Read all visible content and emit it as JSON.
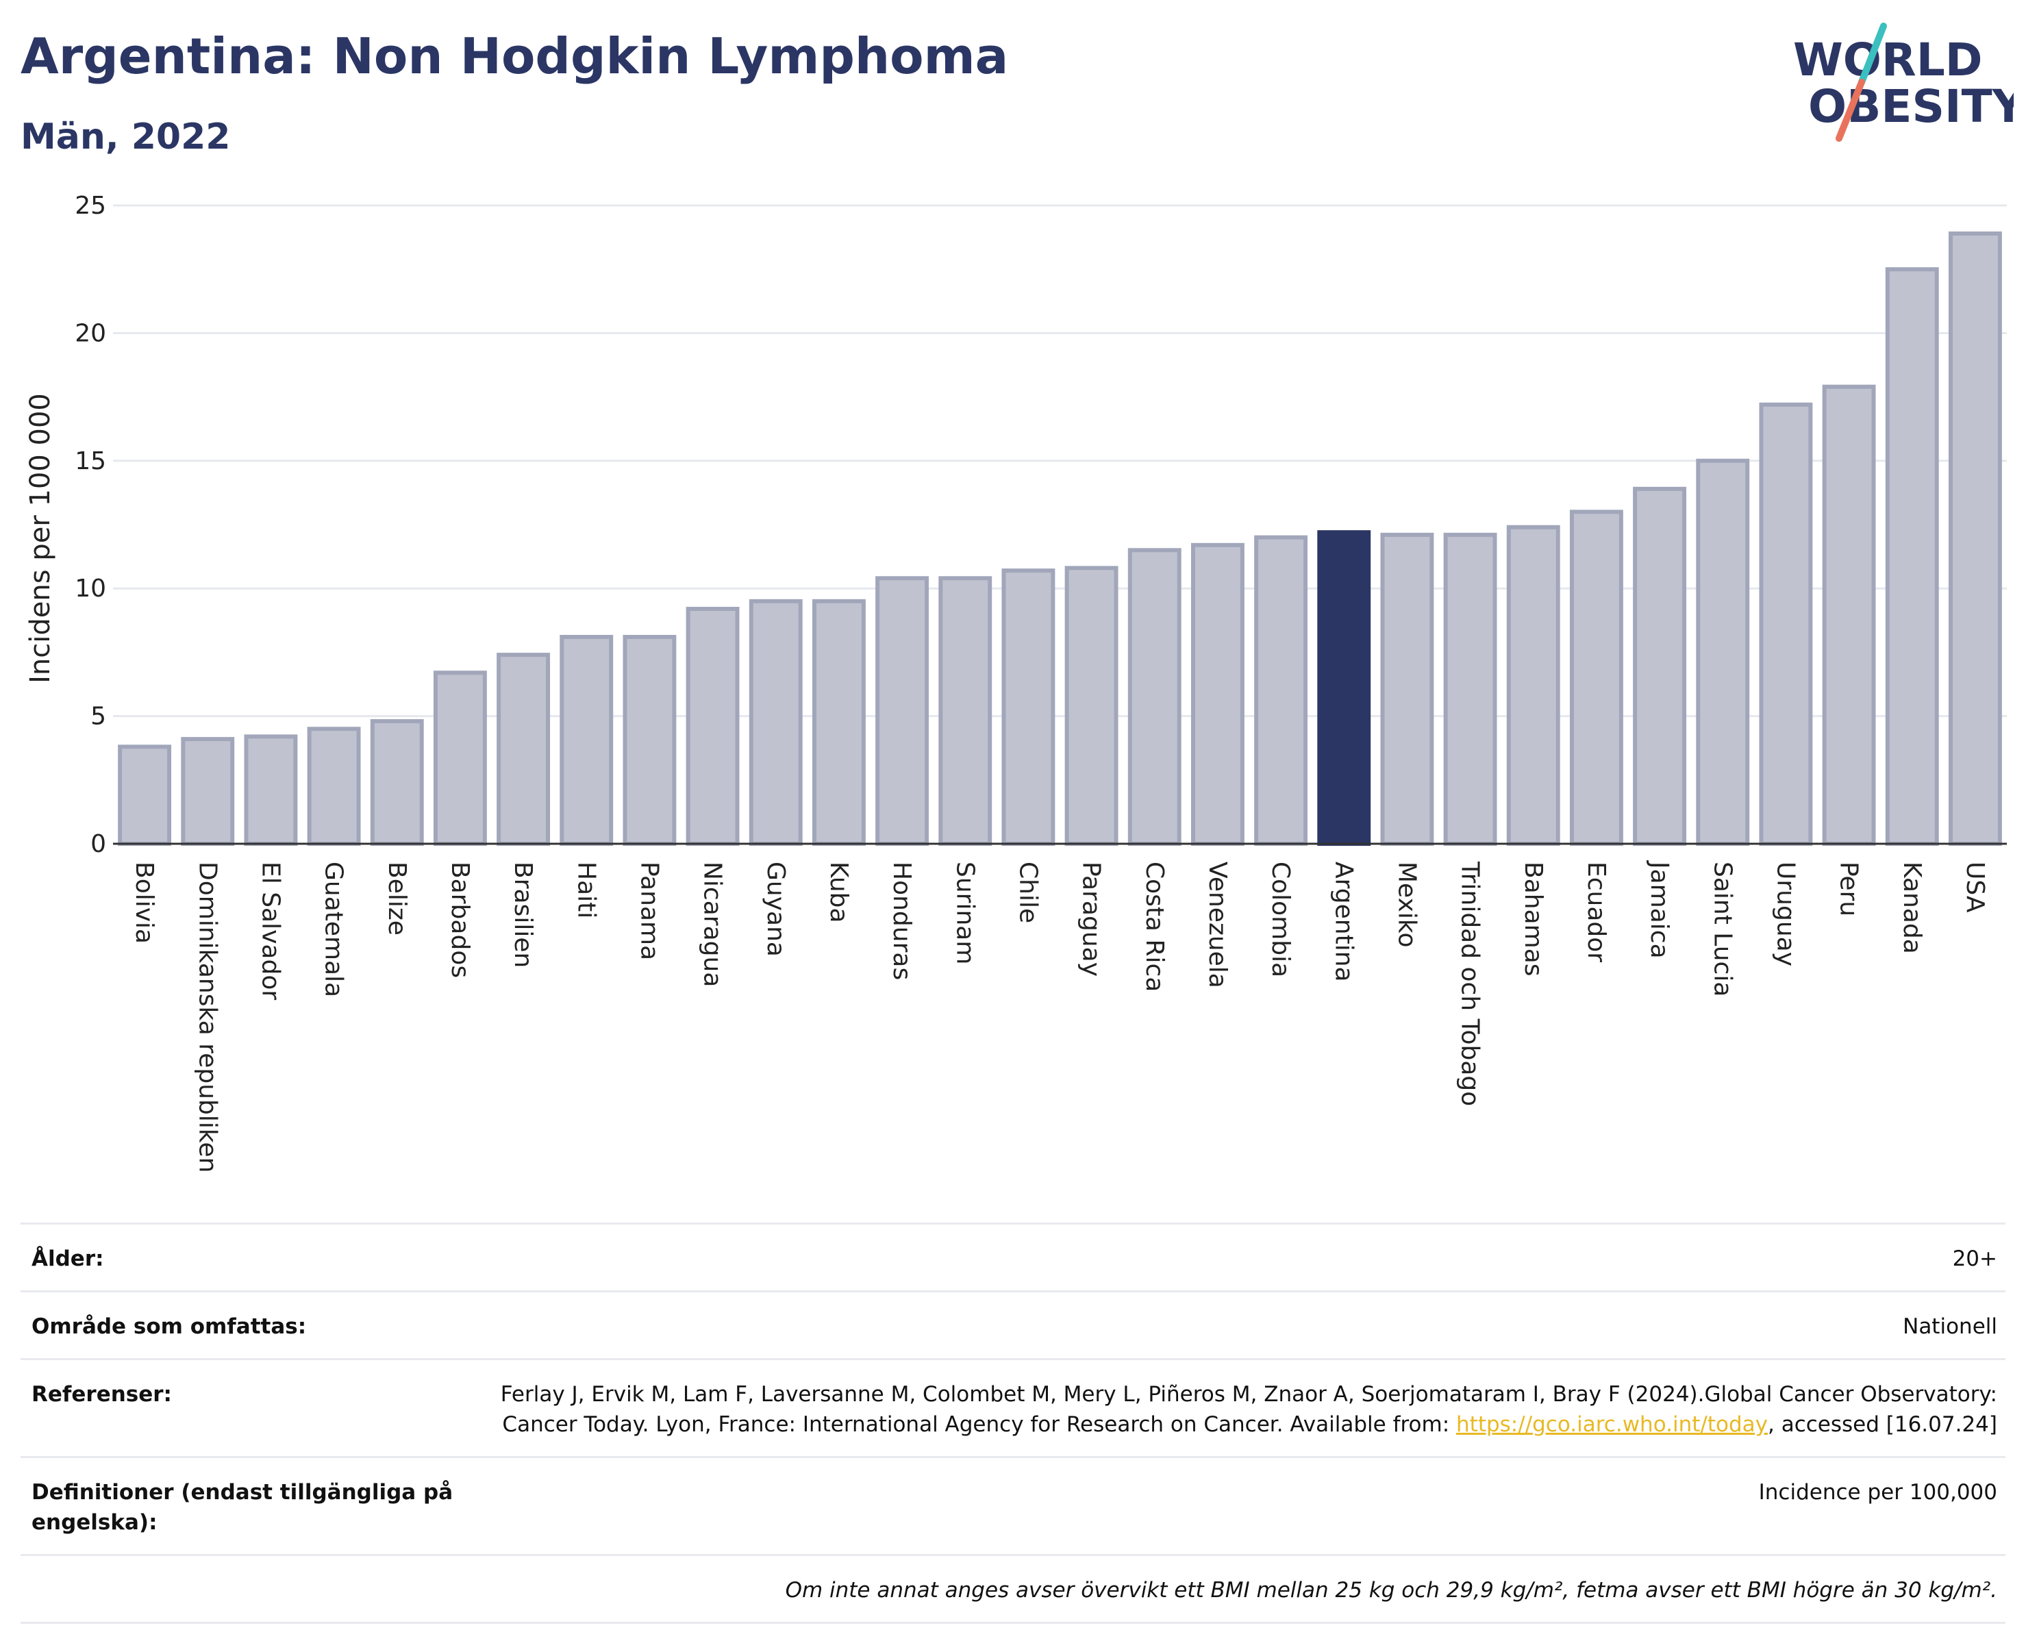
{
  "header": {
    "title": "Argentina: Non Hodgkin Lymphoma",
    "subtitle": "Män, 2022"
  },
  "logo": {
    "line1": "WORLD",
    "line2": "OBESITY",
    "colors": {
      "text": "#2b3664",
      "slash_top": "#3bbfbf",
      "slash_bottom": "#e8725c"
    }
  },
  "colors": {
    "bar_default": "#c0c3cf",
    "bar_default_edge": "#a1a6ba",
    "bar_highlight": "#2b3664",
    "grid": "#e6e8ee",
    "axis": "#333333",
    "link": "#e8b923"
  },
  "chart_data": {
    "type": "bar",
    "title": "",
    "xlabel": "",
    "ylabel": "Incidens per 100 000",
    "ylim": [
      0,
      25
    ],
    "yticks": [
      0,
      5,
      10,
      15,
      20,
      25
    ],
    "grid": true,
    "highlight": "Argentina",
    "categories": [
      "Bolivia",
      "Dominikanska republiken",
      "El Salvador",
      "Guatemala",
      "Belize",
      "Barbados",
      "Brasilien",
      "Haiti",
      "Panama",
      "Nicaragua",
      "Guyana",
      "Kuba",
      "Honduras",
      "Surinam",
      "Chile",
      "Paraguay",
      "Costa Rica",
      "Venezuela",
      "Colombia",
      "Argentina",
      "Mexiko",
      "Trinidad och Tobago",
      "Bahamas",
      "Ecuador",
      "Jamaica",
      "Saint Lucia",
      "Uruguay",
      "Peru",
      "Kanada",
      "USA"
    ],
    "values": [
      3.8,
      4.1,
      4.2,
      4.5,
      4.8,
      6.7,
      7.4,
      8.1,
      8.1,
      9.2,
      9.5,
      9.5,
      10.4,
      10.4,
      10.7,
      10.8,
      11.5,
      11.7,
      12.0,
      12.2,
      12.1,
      12.1,
      12.4,
      13.0,
      13.9,
      15.0,
      17.2,
      17.9,
      22.5,
      23.9
    ]
  },
  "meta": {
    "age_label": "Ålder:",
    "age_value": "20+",
    "area_label": "Område som omfattas:",
    "area_value": "Nationell",
    "refs_label": "Referenser:",
    "refs_text_before": "Ferlay J, Ervik M, Lam F, Laversanne M, Colombet M, Mery L, Piñeros M, Znaor A, Soerjomataram I, Bray F (2024).Global Cancer Observatory: Cancer Today. Lyon, France: International Agency for Research on Cancer. Available from: ",
    "refs_link": "https://gco.iarc.who.int/today",
    "refs_text_after": ", accessed [16.07.24]",
    "defs_label": "Definitioner (endast tillgängliga på engelska):",
    "defs_value": "Incidence per 100,000",
    "note": "Om inte annat anges avser övervikt ett BMI mellan 25 kg och 29,9 kg/m², fetma avser ett BMI högre än 30 kg/m²."
  }
}
